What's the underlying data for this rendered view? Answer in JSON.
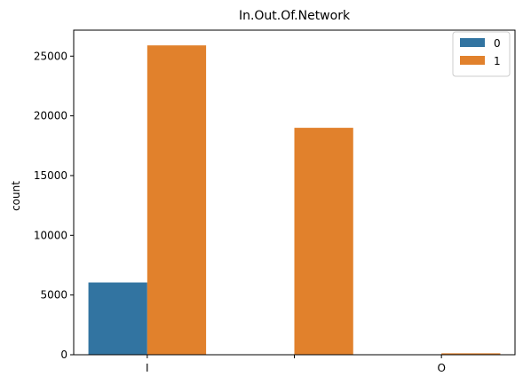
{
  "chart_data": {
    "type": "bar",
    "title": "In.Out.Of.Network",
    "xlabel": "",
    "ylabel": "count",
    "categories": [
      "I",
      "",
      "O"
    ],
    "series": [
      {
        "name": "0",
        "values": [
          6050,
          0,
          0
        ],
        "color": "#3274a1"
      },
      {
        "name": "1",
        "values": [
          25900,
          19000,
          120
        ],
        "color": "#e1812c"
      }
    ],
    "ylim": [
      0,
      27175
    ],
    "yticks": [
      0,
      5000,
      10000,
      15000,
      20000,
      25000
    ],
    "legend": {
      "placement": "top-right",
      "entries": [
        "0",
        "1"
      ]
    },
    "grid": false
  }
}
